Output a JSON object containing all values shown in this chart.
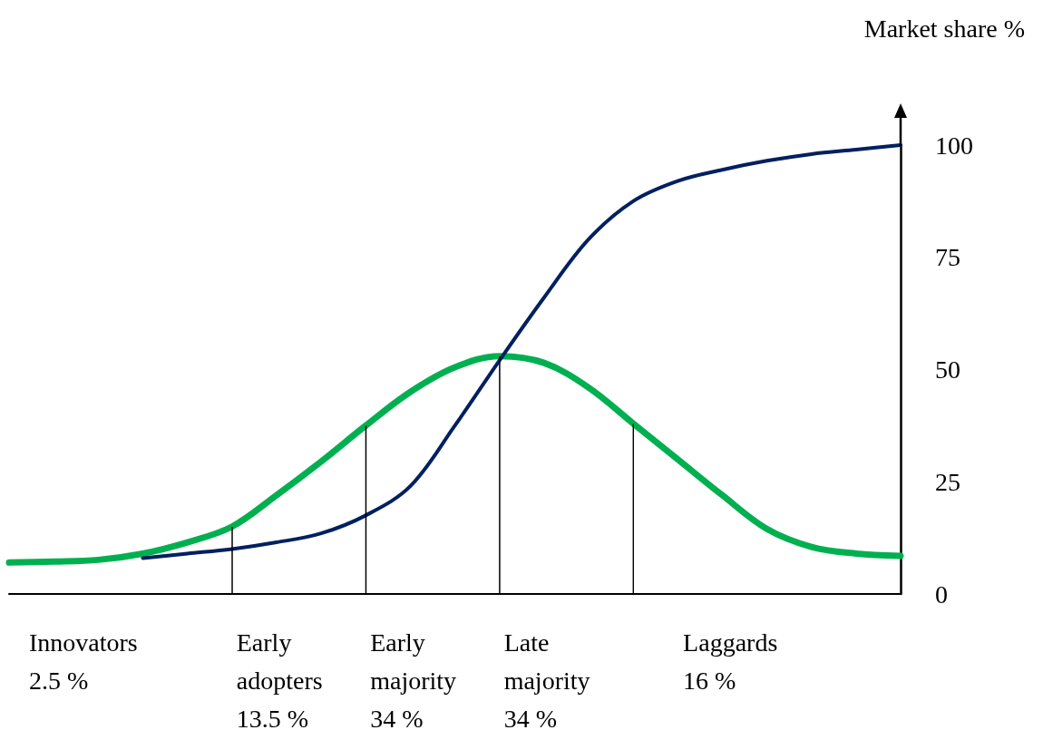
{
  "chart_data": {
    "type": "line",
    "ylabel": "Market share %",
    "ylim": [
      0,
      100
    ],
    "yticks": [
      0,
      25,
      50,
      75,
      100
    ],
    "tick_labels": "y",
    "marker": "none",
    "line_style": "solid",
    "categories": [
      null,
      null,
      null,
      null,
      null,
      null,
      null,
      null,
      null,
      null,
      null,
      null,
      null,
      null,
      null,
      null,
      null,
      null,
      null,
      null,
      null
    ],
    "series": [
      {
        "color": "#00b050",
        "values": [
          7,
          7.2,
          7.6,
          9,
          11.5,
          15,
          22,
          29.5,
          37.5,
          45,
          50.5,
          53,
          51.5,
          46,
          38,
          30,
          22,
          14.5,
          10.5,
          9,
          8.5
        ]
      },
      {
        "color": "#002060",
        "values": [
          null,
          null,
          null,
          8,
          9,
          10,
          11.5,
          13.5,
          17.5,
          24,
          37.5,
          52,
          66,
          79,
          87.5,
          92,
          94.5,
          96.5,
          98,
          99,
          100
        ]
      }
    ],
    "annotations": [
      "Innovators\n2.5 %",
      "Early\nadopters\n13.5 %",
      "Early\nmajority\n34 %",
      "Late\nmajority\n34 %",
      "Laggards\n16 %"
    ]
  }
}
